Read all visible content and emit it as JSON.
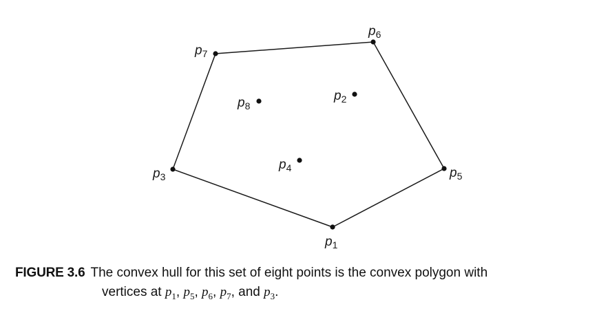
{
  "points": [
    {
      "id": "p1",
      "base": "p",
      "sub": "1",
      "hull": true
    },
    {
      "id": "p2",
      "base": "p",
      "sub": "2",
      "hull": false
    },
    {
      "id": "p3",
      "base": "p",
      "sub": "3",
      "hull": true
    },
    {
      "id": "p4",
      "base": "p",
      "sub": "4",
      "hull": false
    },
    {
      "id": "p5",
      "base": "p",
      "sub": "5",
      "hull": true
    },
    {
      "id": "p6",
      "base": "p",
      "sub": "6",
      "hull": true
    },
    {
      "id": "p7",
      "base": "p",
      "sub": "7",
      "hull": true
    },
    {
      "id": "p8",
      "base": "p",
      "sub": "8",
      "hull": false
    }
  ],
  "hull_order": [
    "p1",
    "p5",
    "p6",
    "p7",
    "p3"
  ],
  "caption": {
    "label": "FIGURE 3.6",
    "text": "The convex hull for this set of eight points is the convex polygon with",
    "line2_prefix": "vertices at",
    "vertices": [
      "p1",
      "p5",
      "p6",
      "p7",
      "p3"
    ],
    "separator": ",",
    "conjunction": "and",
    "end": "."
  }
}
